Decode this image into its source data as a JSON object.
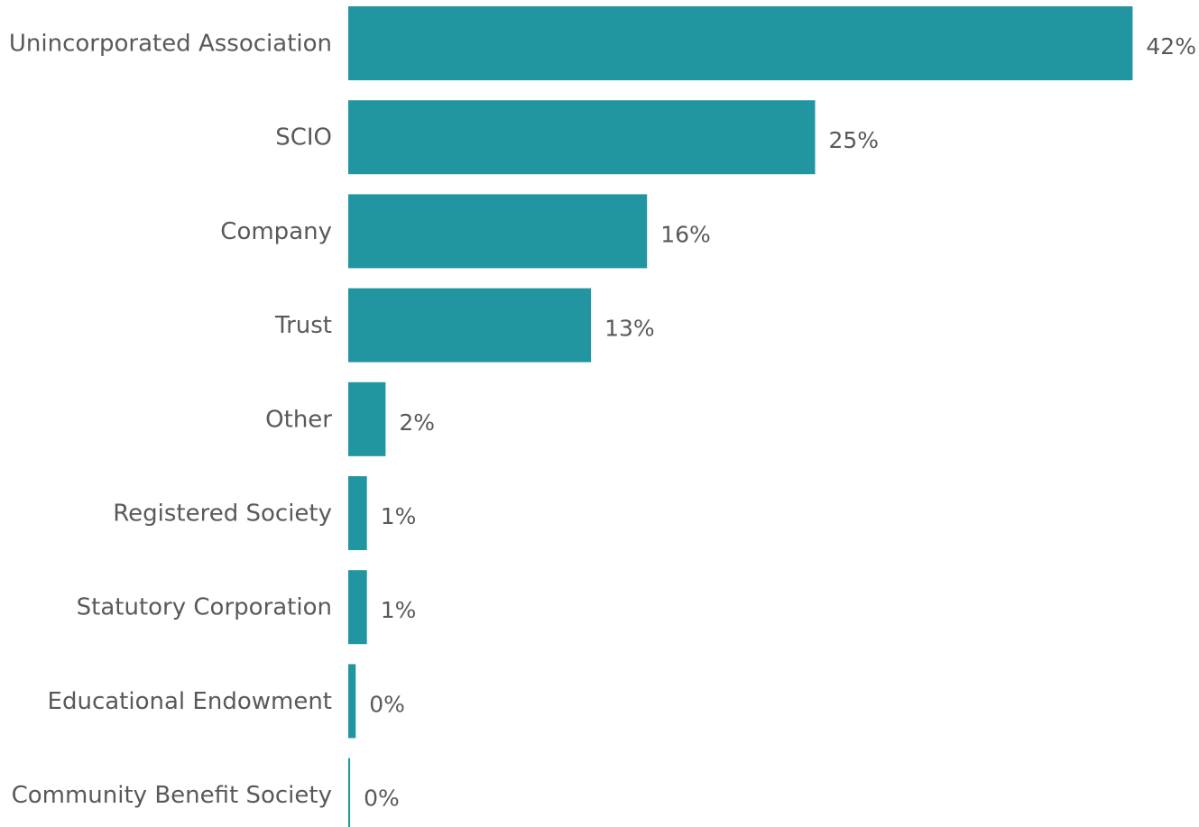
{
  "chart_data": {
    "type": "bar",
    "orientation": "horizontal",
    "categories": [
      "Unincorporated Association",
      "SCIO",
      "Company",
      "Trust",
      "Other",
      "Registered Society",
      "Statutory Corporation",
      "Educational Endowment",
      "Community Benefit Society"
    ],
    "values": [
      42,
      25,
      16,
      13,
      2,
      1,
      1,
      0.4,
      0.1
    ],
    "value_labels": [
      "42%",
      "25%",
      "16%",
      "13%",
      "2%",
      "1%",
      "1%",
      "0%",
      "0%"
    ],
    "title": "",
    "xlabel": "",
    "ylabel": "",
    "grid": false,
    "legend": "none",
    "colors": {
      "bar": "#2196a1",
      "text": "#595959"
    }
  }
}
